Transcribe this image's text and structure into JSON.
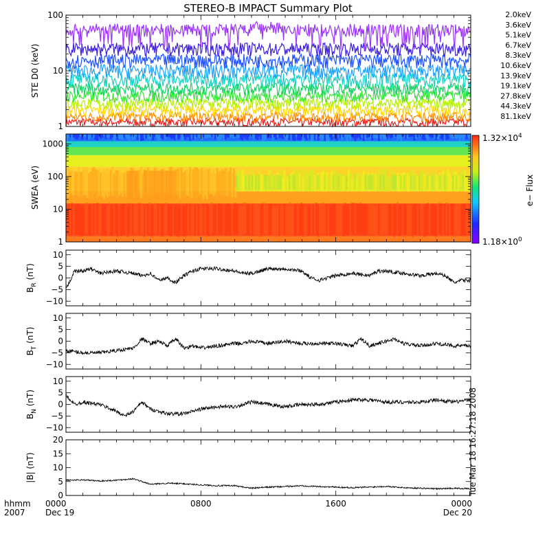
{
  "title": "STEREO-B IMPACT Summary Plot",
  "stamp": "Tue Mar 18 16:27:18 2008",
  "chart_data": [
    {
      "type": "line",
      "panel": "ste",
      "ylabel": "STE D0 (keV)",
      "yscale": "log",
      "ylim": [
        1,
        100
      ],
      "yticks": [
        "1",
        "10",
        "100"
      ],
      "legend_placement": "right",
      "series": [
        {
          "name": "2.0keV",
          "color": "#9b30ff",
          "level": [
            40,
            70
          ]
        },
        {
          "name": "3.6keV",
          "color": "#3c1edc",
          "level": [
            18,
            32
          ]
        },
        {
          "name": "5.1keV",
          "color": "#1e50ff",
          "level": [
            11,
            20
          ]
        },
        {
          "name": "6.7keV",
          "color": "#1ea0ff",
          "level": [
            7,
            13
          ]
        },
        {
          "name": "8.3keV",
          "color": "#14d2c8",
          "level": [
            5,
            9
          ]
        },
        {
          "name": "10.6keV",
          "color": "#14d264",
          "level": [
            3.6,
            6
          ]
        },
        {
          "name": "13.9keV",
          "color": "#32e632",
          "level": [
            2.7,
            4.4
          ]
        },
        {
          "name": "19.1keV",
          "color": "#b4f000",
          "level": [
            2,
            3.2
          ]
        },
        {
          "name": "27.8keV",
          "color": "#ffd700",
          "level": [
            1.5,
            2.4
          ]
        },
        {
          "name": "44.3keV",
          "color": "#ff8c00",
          "level": [
            1.2,
            1.8
          ]
        },
        {
          "name": "81.1keV",
          "color": "#e61e1e",
          "level": [
            1,
            1.4
          ]
        }
      ]
    },
    {
      "type": "heatmap",
      "panel": "swea",
      "ylabel": "SWEA (eV)",
      "yscale": "log",
      "ylim": [
        1,
        2000
      ],
      "yticks": [
        "1",
        "10",
        "100",
        "1000"
      ],
      "colorbar": {
        "label": "e− Flux",
        "max_label": "1.32×10",
        "max_exp": "4",
        "min_label": "1.18×10",
        "min_exp": "0"
      },
      "bands": [
        {
          "energy": [
            1,
            1.5
          ],
          "color": "#ff7a1e"
        },
        {
          "energy": [
            1.5,
            15
          ],
          "color": "#ff4614"
        },
        {
          "energy": [
            15,
            35
          ],
          "color": "#ffa01e"
        },
        {
          "energy": [
            35,
            200
          ],
          "color": "#ffd22a"
        },
        {
          "energy": [
            200,
            450
          ],
          "color": "#e6f01e"
        },
        {
          "energy": [
            450,
            800
          ],
          "color": "#64e650"
        },
        {
          "energy": [
            800,
            1200
          ],
          "color": "#1ed2c8"
        },
        {
          "energy": [
            1200,
            2000
          ],
          "color": "#1e6eff"
        }
      ]
    },
    {
      "type": "line",
      "panel": "br",
      "ylabel_main": "B",
      "ylabel_sub": "R",
      "ylabel_unit": " (nT)",
      "ylim": [
        -12,
        12
      ],
      "yticks": [
        {
          "v": -10,
          "t": "−10"
        },
        {
          "v": -5,
          "t": "−5"
        },
        {
          "v": 0,
          "t": "0"
        },
        {
          "v": 5,
          "t": "5"
        },
        {
          "v": 10,
          "t": "10"
        }
      ],
      "x": [
        0,
        0.5,
        1,
        1.5,
        2,
        3,
        4,
        4.5,
        5,
        5.5,
        6,
        6.5,
        7,
        7.5,
        8,
        9,
        10,
        10.5,
        11,
        11.5,
        12,
        13,
        14,
        14.5,
        15,
        15.5,
        16,
        17,
        18,
        18.5,
        19,
        20,
        21,
        22,
        22.5,
        23,
        23.5,
        24
      ],
      "y": [
        -5,
        3,
        3,
        4,
        2,
        3,
        2,
        1,
        2,
        -1,
        0,
        -2,
        1,
        3,
        4,
        4,
        3,
        2,
        2,
        3,
        4,
        4,
        3,
        0,
        -1,
        0,
        1,
        2,
        1,
        3,
        3,
        2,
        1,
        2,
        1,
        -2,
        -1,
        -1
      ]
    },
    {
      "type": "line",
      "panel": "bt",
      "ylabel_main": "B",
      "ylabel_sub": "T",
      "ylabel_unit": " (nT)",
      "ylim": [
        -12,
        12
      ],
      "yticks": [
        {
          "v": -10,
          "t": "−10"
        },
        {
          "v": -5,
          "t": "−5"
        },
        {
          "v": 0,
          "t": "0"
        },
        {
          "v": 5,
          "t": "5"
        },
        {
          "v": 10,
          "t": "10"
        }
      ],
      "x": [
        0,
        1,
        2,
        3,
        4,
        4.5,
        5,
        5.5,
        6,
        6.5,
        7,
        7.5,
        8,
        9,
        10,
        10.5,
        11,
        12,
        13,
        14,
        15,
        16,
        17,
        17.5,
        18,
        19,
        19.5,
        20,
        21,
        22,
        23,
        24
      ],
      "y": [
        -4,
        -5,
        -5,
        -4,
        -3,
        1,
        -1,
        0,
        -2,
        1,
        -3,
        -2,
        -3,
        -2,
        -1,
        -1,
        0,
        -1,
        0,
        -1,
        -1,
        -1,
        -2,
        1,
        -2,
        0,
        1,
        -1,
        -2,
        -1,
        -2,
        -2
      ]
    },
    {
      "type": "line",
      "panel": "bn",
      "ylabel_main": "B",
      "ylabel_sub": "N",
      "ylabel_unit": " (nT)",
      "ylim": [
        -12,
        12
      ],
      "yticks": [
        {
          "v": -10,
          "t": "−10"
        },
        {
          "v": -5,
          "t": "−5"
        },
        {
          "v": 0,
          "t": "0"
        },
        {
          "v": 5,
          "t": "5"
        },
        {
          "v": 10,
          "t": "10"
        }
      ],
      "x": [
        0,
        0.5,
        1,
        2,
        3,
        3.5,
        4,
        4.5,
        5,
        6,
        7,
        8,
        9,
        10,
        11,
        12,
        13,
        14,
        15,
        16,
        17,
        18,
        19,
        20,
        21,
        22,
        23,
        24
      ],
      "y": [
        4,
        0,
        1,
        0,
        -3,
        -5,
        -3,
        1,
        -2,
        -4,
        -4,
        -2,
        -1,
        -1,
        1,
        0,
        -1,
        0,
        0,
        1,
        2,
        2,
        1,
        1,
        1,
        2,
        1,
        2
      ]
    },
    {
      "type": "line",
      "panel": "bmag",
      "ylabel_main": "|B| (nT)",
      "ylim": [
        0,
        20
      ],
      "yticks": [
        {
          "v": 0,
          "t": "0"
        },
        {
          "v": 5,
          "t": "5"
        },
        {
          "v": 10,
          "t": "10"
        },
        {
          "v": 15,
          "t": "15"
        },
        {
          "v": 20,
          "t": "20"
        }
      ],
      "x": [
        0,
        1,
        2,
        3,
        4,
        5,
        6,
        7,
        8,
        9,
        10,
        11,
        12,
        13,
        14,
        15,
        16,
        17,
        18,
        19,
        20,
        21,
        22,
        23,
        24
      ],
      "y": [
        5.5,
        5.6,
        5.2,
        5.5,
        6,
        4,
        4.4,
        4.2,
        3.8,
        3.5,
        3.5,
        2.6,
        3,
        3.2,
        3.5,
        3.2,
        3,
        2.8,
        3,
        3.3,
        2.8,
        2.6,
        2.4,
        2.6,
        2.4
      ]
    }
  ],
  "xaxis": {
    "range_hours": [
      0,
      24
    ],
    "row1_label": "hhmm",
    "row2_label": "2007",
    "ticks": [
      {
        "h": 0,
        "time": "0000",
        "date": "Dec 19"
      },
      {
        "h": 8,
        "time": "0800",
        "date": ""
      },
      {
        "h": 16,
        "time": "1600",
        "date": ""
      },
      {
        "h": 24,
        "time": "0000",
        "date": "Dec 20"
      }
    ]
  }
}
